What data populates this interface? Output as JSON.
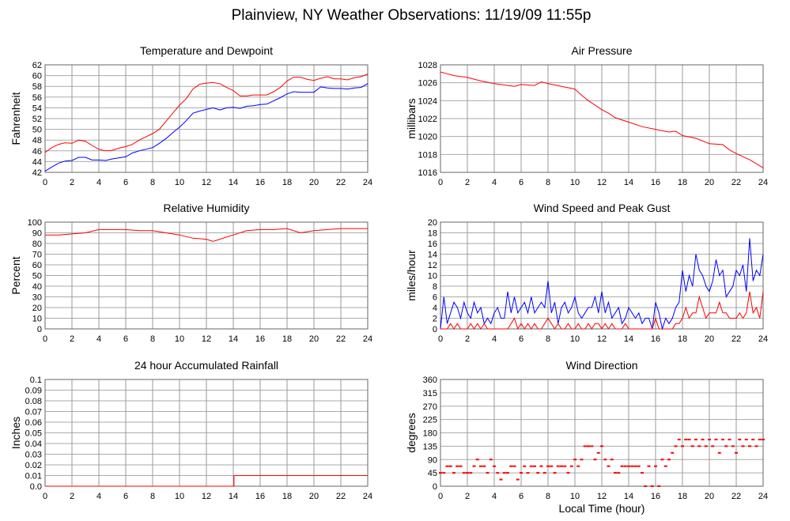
{
  "title": "Plainview, NY Weather Observations: 11/19/09 11:55p",
  "chart_data": [
    {
      "type": "line",
      "title": "Temperature and Dewpoint",
      "xlabel": "",
      "ylabel": "Fahrenheit",
      "xlim": [
        0,
        24
      ],
      "ylim": [
        42,
        62
      ],
      "xticks": [
        "0",
        "2",
        "4",
        "6",
        "8",
        "10",
        "12",
        "14",
        "16",
        "18",
        "20",
        "22",
        "24"
      ],
      "yticks": [
        "42",
        "44",
        "46",
        "48",
        "50",
        "52",
        "54",
        "56",
        "58",
        "60",
        "62"
      ],
      "series": [
        {
          "name": "Temperature",
          "color": "#ff0000",
          "x_start": 0,
          "x_step": 0.5,
          "values": [
            45.7,
            46.6,
            47.2,
            47.5,
            47.4,
            48.0,
            47.8,
            47.0,
            46.3,
            46.0,
            46.1,
            46.5,
            46.8,
            47.2,
            48.0,
            48.6,
            49.2,
            50.0,
            51.5,
            53.0,
            54.5,
            55.7,
            57.5,
            58.4,
            58.6,
            58.7,
            58.5,
            57.8,
            57.2,
            56.2,
            56.2,
            56.4,
            56.4,
            56.4,
            57.0,
            57.8,
            59.0,
            59.7,
            59.7,
            59.3,
            59.1,
            59.5,
            59.8,
            59.4,
            59.4,
            59.2,
            59.6,
            59.8,
            60.3
          ]
        },
        {
          "name": "Dewpoint",
          "color": "#0000ff",
          "x_start": 0,
          "x_step": 0.5,
          "values": [
            42.2,
            43.0,
            43.7,
            44.1,
            44.2,
            44.8,
            44.8,
            44.3,
            44.3,
            44.2,
            44.5,
            44.7,
            44.9,
            45.6,
            46.0,
            46.3,
            46.6,
            47.4,
            48.3,
            49.4,
            50.4,
            51.6,
            53.0,
            53.4,
            53.7,
            54.0,
            53.6,
            54.0,
            54.1,
            53.9,
            54.3,
            54.4,
            54.6,
            54.7,
            55.3,
            55.9,
            56.6,
            57.0,
            56.9,
            56.9,
            56.9,
            57.9,
            57.7,
            57.6,
            57.6,
            57.5,
            57.7,
            57.8,
            58.5
          ]
        }
      ]
    },
    {
      "type": "line",
      "title": "Air Pressure",
      "xlabel": "",
      "ylabel": "millibars",
      "xlim": [
        0,
        24
      ],
      "ylim": [
        1016,
        1028
      ],
      "xticks": [
        "0",
        "2",
        "4",
        "6",
        "8",
        "10",
        "12",
        "14",
        "16",
        "18",
        "20",
        "22",
        "24"
      ],
      "yticks": [
        "1016",
        "1018",
        "1020",
        "1022",
        "1024",
        "1026",
        "1028"
      ],
      "series": [
        {
          "name": "Pressure",
          "color": "#ff0000",
          "x": [
            0,
            0.5,
            1,
            2,
            3,
            4,
            5,
            5.5,
            6,
            7,
            7.5,
            8,
            9,
            10,
            10.5,
            11,
            12,
            12.5,
            13,
            14,
            15,
            16,
            17,
            17.5,
            18,
            19,
            20,
            21,
            21.5,
            22,
            23,
            24
          ],
          "values": [
            1027.2,
            1027.0,
            1026.8,
            1026.6,
            1026.2,
            1025.9,
            1025.7,
            1025.6,
            1025.8,
            1025.7,
            1026.1,
            1025.9,
            1025.6,
            1025.3,
            1024.6,
            1024.0,
            1023.0,
            1022.6,
            1022.1,
            1021.6,
            1021.1,
            1020.8,
            1020.5,
            1020.6,
            1020.1,
            1019.8,
            1019.2,
            1019.1,
            1018.5,
            1018.1,
            1017.4,
            1016.5
          ]
        }
      ]
    },
    {
      "type": "line",
      "title": "Relative Humidity",
      "xlabel": "",
      "ylabel": "Percent",
      "xlim": [
        0,
        24
      ],
      "ylim": [
        0,
        100
      ],
      "xticks": [
        "0",
        "2",
        "4",
        "6",
        "8",
        "10",
        "12",
        "14",
        "16",
        "18",
        "20",
        "22",
        "24"
      ],
      "yticks": [
        "0",
        "10",
        "20",
        "30",
        "40",
        "50",
        "60",
        "70",
        "80",
        "90",
        "100"
      ],
      "series": [
        {
          "name": "Humidity",
          "color": "#ff0000",
          "x": [
            0,
            1,
            2,
            3,
            4,
            5,
            6,
            7,
            8,
            9,
            10,
            11,
            12,
            12.5,
            13,
            14,
            15,
            16,
            17,
            18,
            19,
            20,
            21,
            22,
            23,
            24
          ],
          "values": [
            88,
            88,
            89,
            90,
            93,
            93,
            93,
            92,
            92,
            90,
            88,
            85,
            84,
            82,
            84,
            88,
            92,
            93,
            93,
            94,
            90,
            92,
            93,
            94,
            94,
            94
          ]
        }
      ]
    },
    {
      "type": "line",
      "title": "Wind Speed and Peak Gust",
      "xlabel": "",
      "ylabel": "miles/hour",
      "xlim": [
        0,
        24
      ],
      "ylim": [
        0,
        20
      ],
      "xticks": [
        "0",
        "2",
        "4",
        "6",
        "8",
        "10",
        "12",
        "14",
        "16",
        "18",
        "20",
        "22",
        "24"
      ],
      "yticks": [
        "0",
        "2",
        "4",
        "6",
        "8",
        "10",
        "12",
        "14",
        "16",
        "18",
        "20"
      ],
      "series": [
        {
          "name": "Peak Gust",
          "color": "#0000ff",
          "x_start": 0,
          "x_step": 0.25,
          "values": [
            0,
            6,
            1,
            3,
            5,
            4,
            2,
            5,
            3,
            2,
            5,
            3,
            4,
            1,
            2,
            1,
            3,
            4,
            2,
            2,
            7,
            3,
            6,
            3,
            4,
            5,
            3,
            6,
            3,
            4,
            5,
            4,
            9,
            3,
            5,
            1,
            4,
            5,
            3,
            4,
            6,
            3,
            2,
            3,
            4,
            4,
            6,
            3,
            7,
            3,
            5,
            2,
            3,
            4,
            1,
            2,
            4,
            3,
            2,
            3,
            1,
            2,
            2,
            0,
            5,
            3,
            0,
            2,
            1,
            2,
            4,
            5,
            11,
            7,
            10,
            8,
            14,
            11,
            10,
            8,
            7,
            9,
            13,
            10,
            11,
            6,
            7,
            8,
            11,
            10,
            12,
            7,
            17,
            9,
            11,
            10,
            14
          ]
        },
        {
          "name": "Wind Speed",
          "color": "#ff0000",
          "x_start": 0,
          "x_step": 0.25,
          "values": [
            0,
            0,
            0,
            1,
            0,
            1,
            0,
            0,
            0,
            1,
            0,
            1,
            0,
            1,
            0,
            0,
            0,
            0,
            0,
            0,
            0,
            1,
            2,
            0,
            1,
            0,
            1,
            0,
            1,
            0,
            0,
            1,
            2,
            1,
            0,
            1,
            0,
            0,
            1,
            0,
            0,
            1,
            0,
            0,
            1,
            0,
            1,
            1,
            0,
            1,
            0,
            1,
            0,
            0,
            0,
            1,
            0,
            0,
            0,
            0,
            0,
            0,
            0,
            0,
            2,
            0,
            0,
            0,
            0,
            0,
            1,
            1,
            2,
            4,
            2,
            3,
            3,
            6,
            4,
            2,
            3,
            3,
            3,
            5,
            3,
            3,
            2,
            2,
            2,
            3,
            2,
            3,
            7,
            3,
            4,
            2,
            7
          ]
        }
      ]
    },
    {
      "type": "line",
      "title": "24 hour Accumulated Rainfall",
      "xlabel": "",
      "ylabel": "Inches",
      "xlim": [
        0,
        24
      ],
      "ylim": [
        0,
        0.1
      ],
      "xticks": [
        "0",
        "2",
        "4",
        "6",
        "8",
        "10",
        "12",
        "14",
        "16",
        "18",
        "20",
        "22",
        "24"
      ],
      "yticks": [
        "0.0",
        "0.01",
        "0.02",
        "0.03",
        "0.04",
        "0.05",
        "0.06",
        "0.07",
        "0.08",
        "0.09",
        "0.1"
      ],
      "series": [
        {
          "name": "Rainfall",
          "color": "#ff0000",
          "x": [
            0,
            14.05,
            14.05,
            24
          ],
          "values": [
            0,
            0,
            0.01,
            0.01
          ]
        }
      ]
    },
    {
      "type": "scatter",
      "title": "Wind Direction",
      "xlabel": "Local Time (hour)",
      "ylabel": "degrees",
      "xlim": [
        0,
        24
      ],
      "ylim": [
        0,
        360
      ],
      "xticks": [
        "0",
        "2",
        "4",
        "6",
        "8",
        "10",
        "12",
        "14",
        "16",
        "18",
        "20",
        "22",
        "24"
      ],
      "yticks": [
        "0",
        "45",
        "90",
        "135",
        "180",
        "225",
        "270",
        "315",
        "360"
      ],
      "series": [
        {
          "name": "Direction",
          "color": "#ff0000",
          "x_start": 0,
          "x_step": 0.25,
          "values": [
            45,
            45,
            67.5,
            67.5,
            45,
            67.5,
            67.5,
            45,
            45,
            45,
            67.5,
            90,
            67.5,
            67.5,
            45,
            90,
            67.5,
            45,
            22.5,
            45,
            45,
            67.5,
            67.5,
            22.5,
            45,
            67.5,
            45,
            67.5,
            67.5,
            45,
            67.5,
            45,
            67.5,
            67.5,
            45,
            67.5,
            67.5,
            67.5,
            45,
            67.5,
            90,
            67.5,
            90,
            135,
            135,
            135,
            90,
            112.5,
            135,
            90,
            67.5,
            90,
            45,
            45,
            67.5,
            67.5,
            67.5,
            67.5,
            67.5,
            67.5,
            45,
            0,
            67.5,
            0,
            67.5,
            0,
            90,
            67.5,
            90,
            112.5,
            135,
            157.5,
            135,
            157.5,
            157.5,
            135,
            157.5,
            135,
            157.5,
            135,
            157.5,
            135,
            157.5,
            112.5,
            157.5,
            135,
            157.5,
            135,
            112.5,
            157.5,
            135,
            157.5,
            135,
            157.5,
            135,
            157.5,
            157.5
          ]
        }
      ]
    }
  ]
}
